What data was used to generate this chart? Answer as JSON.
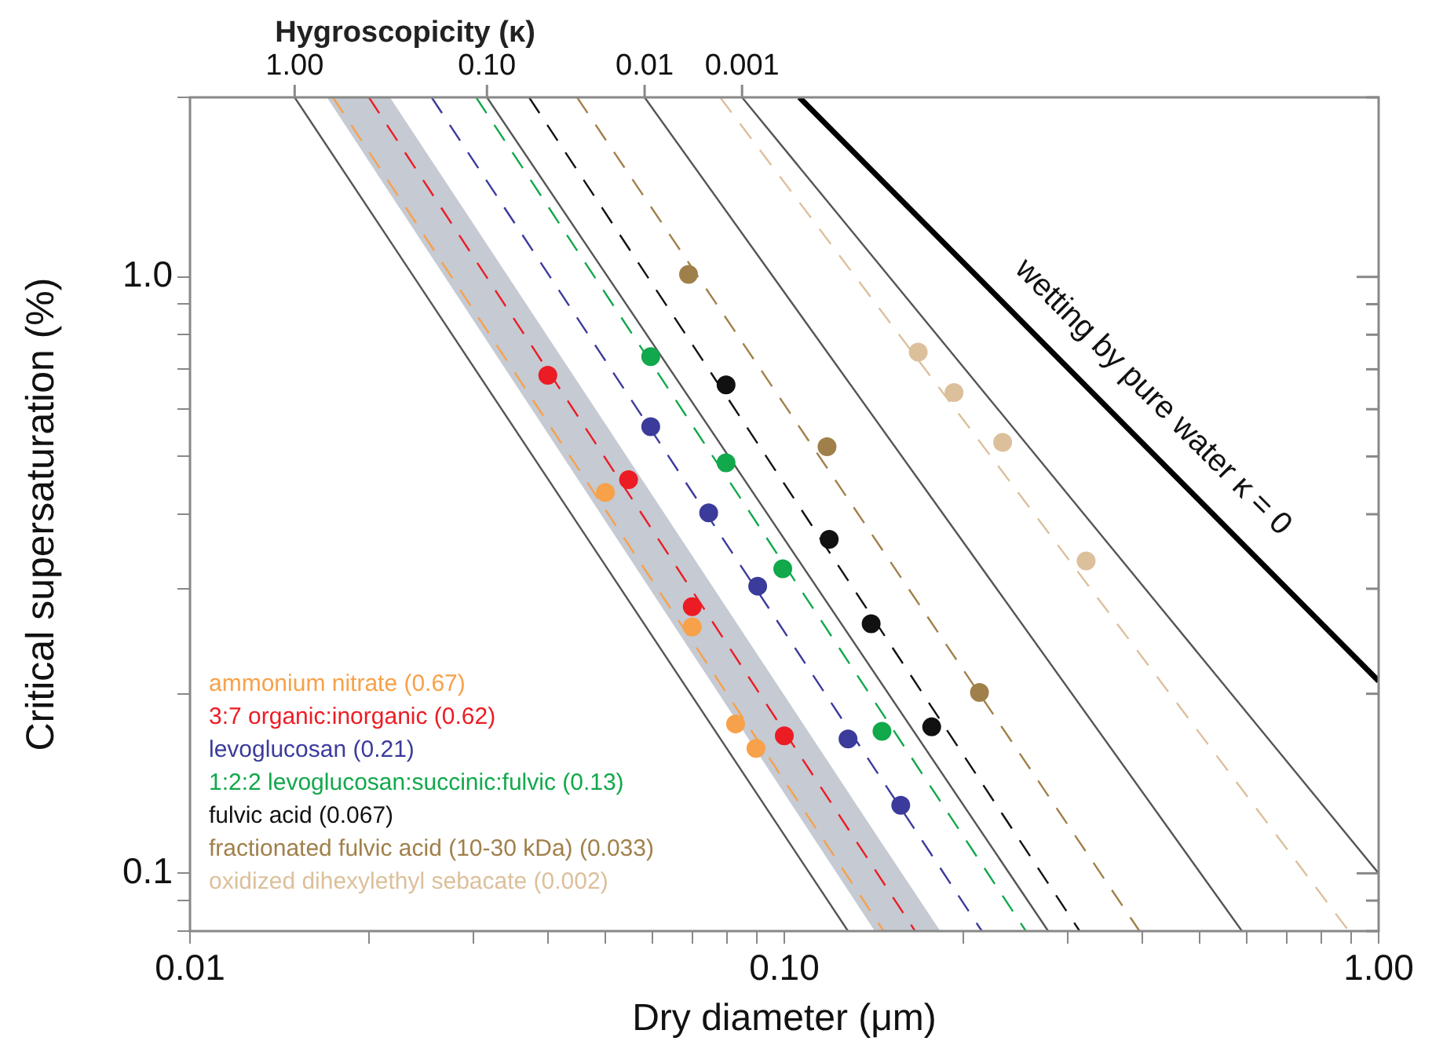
{
  "chart_data": {
    "type": "scatter",
    "xlabel": "Dry diameter (μm)",
    "ylabel": "Critical supersaturation (%)",
    "x2label": "Hygroscopicity (κ)",
    "log": "xy",
    "grid": false,
    "legend": "bottom left",
    "marker": "circle",
    "xlim": [
      0.01,
      1
    ],
    "ylim": [
      0.08,
      2
    ],
    "xticks": [
      0.01,
      {
        "value": 0.02,
        "label": null
      },
      {
        "value": 0.03,
        "label": null
      },
      {
        "value": 0.04,
        "label": null
      },
      {
        "value": 0.05,
        "label": null
      },
      {
        "value": 0.06,
        "label": null
      },
      {
        "value": 0.07,
        "label": null
      },
      {
        "value": 0.08,
        "label": null
      },
      {
        "value": 0.09,
        "label": null
      },
      {
        "value": 0.1,
        "label": "0.10"
      },
      {
        "value": 0.2,
        "label": null
      },
      {
        "value": 0.3,
        "label": null
      },
      {
        "value": 0.4,
        "label": null
      },
      {
        "value": 0.5,
        "label": null
      },
      {
        "value": 0.6,
        "label": null
      },
      {
        "value": 0.7,
        "label": null
      },
      {
        "value": 0.8,
        "label": null
      },
      {
        "value": 0.9,
        "label": null
      },
      {
        "value": 1,
        "label": "1.00"
      }
    ],
    "yticks": [
      {
        "value": 0.08,
        "label": null
      },
      {
        "value": 0.09,
        "label": null
      },
      0.1,
      {
        "value": 0.2,
        "label": null
      },
      {
        "value": 0.3,
        "label": null
      },
      {
        "value": 0.4,
        "label": null
      },
      {
        "value": 0.5,
        "label": null
      },
      {
        "value": 0.6,
        "label": null
      },
      {
        "value": 0.7,
        "label": null
      },
      {
        "value": 0.8,
        "label": null
      },
      {
        "value": 0.9,
        "label": null
      },
      {
        "value": 1,
        "label": "1.0"
      },
      {
        "value": 2,
        "label": null
      }
    ],
    "annotations": [
      "wetting by pure water κ = 0",
      {
        "text": "1.00",
        "x": 0.015,
        "y": 2
      },
      {
        "text": "0.10",
        "x": 0.0316,
        "y": 2
      },
      {
        "text": "0.01",
        "x": 0.0582,
        "y": 2
      },
      {
        "text": "0.001",
        "x": 0.0849,
        "y": 2
      }
    ],
    "series": [
      {
        "type": "line",
        "marker": "none",
        "color": "#c5cad3",
        "x": [
          0.017,
          0.0217,
          0.142,
          0.183
        ],
        "values": [
          null,
          null,
          null,
          null
        ],
        "lower": [
          2,
          1.38,
          0.08,
          0.08
        ],
        "upper": [
          2,
          2,
          0.117,
          0.08
        ]
      },
      {
        "type": "line",
        "marker": "none",
        "line_style": "solid",
        "color": "#555555",
        "x": [
          0.015,
          0.128
        ],
        "values": [
          2,
          0.08
        ]
      },
      {
        "type": "line",
        "marker": "none",
        "line_style": "solid",
        "color": "#555555",
        "x": [
          0.0316,
          0.278
        ],
        "values": [
          2,
          0.08
        ]
      },
      {
        "type": "line",
        "marker": "none",
        "line_style": "solid",
        "color": "#555555",
        "x": [
          0.0582,
          0.589
        ],
        "values": [
          2,
          0.08
        ]
      },
      {
        "type": "line",
        "marker": "none",
        "line_style": "solid",
        "color": "#555555",
        "x": [
          0.0849,
          1
        ],
        "values": [
          2,
          0.1
        ]
      },
      {
        "type": "line",
        "marker": "none",
        "line_style": "solid",
        "color": "#000000",
        "x": [
          0.106,
          1
        ],
        "values": [
          2,
          0.21
        ]
      },
      {
        "type": "line",
        "marker": "none",
        "line_style": "dashed",
        "color": "#f7a14a",
        "x": [
          0.0174,
          0.147
        ],
        "values": [
          2,
          0.08
        ]
      },
      {
        "type": "line",
        "marker": "none",
        "line_style": "dashed",
        "color": "#ec1c24",
        "x": [
          0.02,
          0.166
        ],
        "values": [
          2,
          0.08
        ]
      },
      {
        "type": "line",
        "marker": "none",
        "line_style": "dashed",
        "color": "#3b3b9c",
        "x": [
          0.0255,
          0.215
        ],
        "values": [
          2,
          0.08
        ]
      },
      {
        "type": "line",
        "marker": "none",
        "line_style": "dashed",
        "color": "#12a84c",
        "x": [
          0.0303,
          0.255
        ],
        "values": [
          2,
          0.08
        ]
      },
      {
        "type": "line",
        "marker": "none",
        "line_style": "dashed",
        "color": "#111111",
        "x": [
          0.0372,
          0.314
        ],
        "values": [
          2,
          0.08
        ]
      },
      {
        "type": "line",
        "marker": "none",
        "line_style": "dashed",
        "color": "#a0804a",
        "x": [
          0.0448,
          0.396
        ],
        "values": [
          2,
          0.08
        ]
      },
      {
        "type": "line",
        "marker": "none",
        "line_style": "dashed",
        "color": "#dcc09c",
        "x": [
          0.078,
          0.891
        ],
        "values": [
          2,
          0.08
        ]
      },
      {
        "name": "ammonium nitrate (0.67)",
        "color": "#f7a14a",
        "x": [
          0.05,
          0.07,
          0.0828,
          0.0896
        ],
        "values": [
          0.435,
          0.259,
          0.178,
          0.162
        ]
      },
      {
        "name": "3:7 organic:inorganic (0.62)",
        "color": "#ec1c24",
        "x": [
          0.04,
          0.0547,
          0.07,
          0.1
        ],
        "values": [
          0.684,
          0.457,
          0.28,
          0.17
        ]
      },
      {
        "name": "levoglucosan (0.21)",
        "color": "#3b3b9c",
        "x": [
          0.0596,
          0.0746,
          0.0902,
          0.128,
          0.157
        ],
        "values": [
          0.561,
          0.402,
          0.303,
          0.168,
          0.13
        ]
      },
      {
        "name": "1:2:2 levoglucosan:succinic:fulvic (0.13)",
        "color": "#12a84c",
        "x": [
          0.0596,
          0.0798,
          0.0994,
          0.146
        ],
        "values": [
          0.735,
          0.488,
          0.324,
          0.173
        ]
      },
      {
        "name": "fulvic acid (0.067)",
        "color": "#111111",
        "x": [
          0.0798,
          0.119,
          0.14,
          0.177
        ],
        "values": [
          0.659,
          0.363,
          0.262,
          0.176
        ]
      },
      {
        "name": "fractionated fulvic acid (10-30 kDa) (0.033)",
        "color": "#a0804a",
        "x": [
          0.069,
          0.118,
          0.213
        ],
        "values": [
          1.01,
          0.519,
          0.201
        ]
      },
      {
        "name": "oxidized dihexylethyl sebacate (0.002)",
        "color": "#dcc09c",
        "x": [
          0.168,
          0.193,
          0.233,
          0.322
        ],
        "values": [
          0.748,
          0.64,
          0.528,
          0.334
        ]
      }
    ]
  }
}
